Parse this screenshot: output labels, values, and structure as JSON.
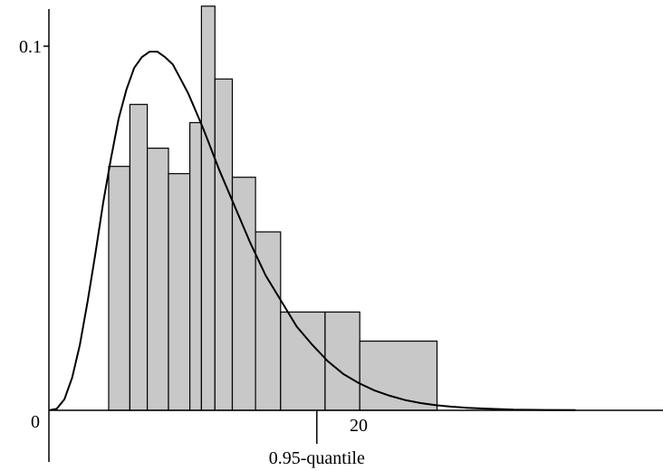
{
  "chart_data": {
    "type": "bar",
    "title": "",
    "xlabel": "",
    "ylabel": "",
    "xlim": [
      0,
      34
    ],
    "ylim": [
      0,
      0.11
    ],
    "grid": false,
    "bar_fill": "#c8c8c8",
    "bar_stroke": "#000000",
    "curve_color": "#000000",
    "bins": [
      {
        "x0": 3.86,
        "x1": 5.23,
        "value": 0.067
      },
      {
        "x0": 5.23,
        "x1": 6.35,
        "value": 0.084
      },
      {
        "x0": 6.35,
        "x1": 7.72,
        "value": 0.072
      },
      {
        "x0": 7.72,
        "x1": 9.1,
        "value": 0.065
      },
      {
        "x0": 9.1,
        "x1": 9.85,
        "value": 0.079
      },
      {
        "x0": 9.85,
        "x1": 10.72,
        "value": 0.111
      },
      {
        "x0": 10.72,
        "x1": 11.84,
        "value": 0.091
      },
      {
        "x0": 11.84,
        "x1": 13.34,
        "value": 0.064
      },
      {
        "x0": 13.34,
        "x1": 14.96,
        "value": 0.049
      },
      {
        "x0": 14.96,
        "x1": 17.83,
        "value": 0.027
      },
      {
        "x0": 17.83,
        "x1": 20.07,
        "value": 0.027
      },
      {
        "x0": 20.07,
        "x1": 25.06,
        "value": 0.019
      }
    ],
    "curve": {
      "name": "",
      "points": [
        [
          0.0,
          0.0
        ],
        [
          0.5,
          0.0004
        ],
        [
          1.0,
          0.003
        ],
        [
          1.5,
          0.009
        ],
        [
          2.0,
          0.018
        ],
        [
          2.5,
          0.03
        ],
        [
          3.0,
          0.043
        ],
        [
          3.5,
          0.057
        ],
        [
          4.0,
          0.069
        ],
        [
          4.5,
          0.08
        ],
        [
          5.0,
          0.088
        ],
        [
          5.5,
          0.094
        ],
        [
          6.0,
          0.097
        ],
        [
          6.5,
          0.0985
        ],
        [
          7.0,
          0.0985
        ],
        [
          7.5,
          0.097
        ],
        [
          8.0,
          0.095
        ],
        [
          8.5,
          0.091
        ],
        [
          9.0,
          0.087
        ],
        [
          9.5,
          0.082
        ],
        [
          10.0,
          0.077
        ],
        [
          11.0,
          0.066
        ],
        [
          12.0,
          0.056
        ],
        [
          13.0,
          0.046
        ],
        [
          14.0,
          0.037
        ],
        [
          15.0,
          0.03
        ],
        [
          16.0,
          0.023
        ],
        [
          17.0,
          0.018
        ],
        [
          18.0,
          0.0135
        ],
        [
          19.0,
          0.01
        ],
        [
          20.0,
          0.0075
        ],
        [
          21.0,
          0.0055
        ],
        [
          22.0,
          0.004
        ],
        [
          23.0,
          0.0028
        ],
        [
          24.0,
          0.002
        ],
        [
          25.0,
          0.0014
        ],
        [
          26.0,
          0.001
        ],
        [
          27.0,
          0.0007
        ],
        [
          28.0,
          0.0005
        ],
        [
          30.0,
          0.0002
        ],
        [
          32.0,
          0.0001
        ],
        [
          34.0,
          5e-05
        ]
      ]
    },
    "y_ticks": [
      {
        "value": 0.1,
        "label": "0.1"
      }
    ],
    "origin_label": "0",
    "x_ticks": [
      {
        "value": 20,
        "label": "20"
      }
    ],
    "annotations": [
      {
        "x": 17.3,
        "label": "0.95-quantile"
      }
    ]
  }
}
